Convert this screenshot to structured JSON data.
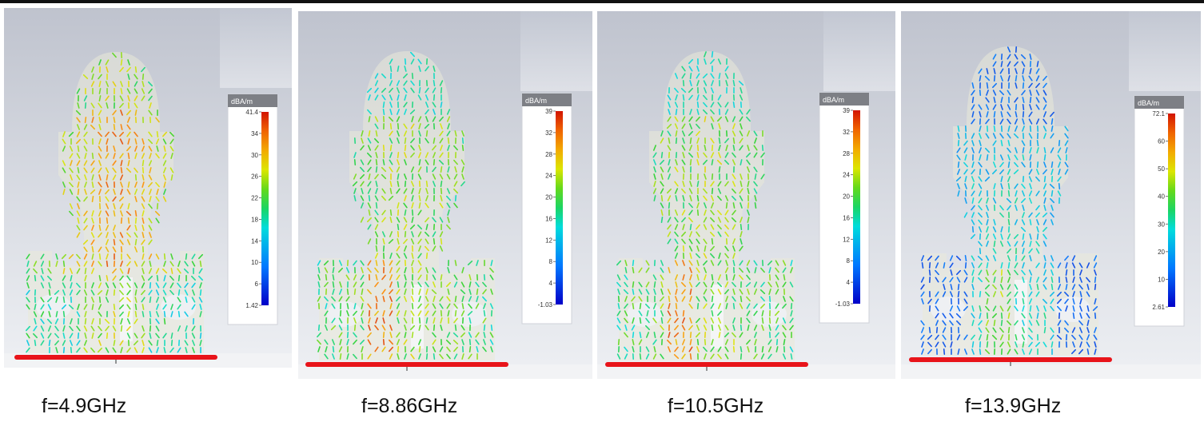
{
  "panels": [
    {
      "caption": "f=4.9GHz",
      "unit": "dBA/m",
      "ticks": [
        "41.4",
        "34",
        "30",
        "26",
        "22",
        "18",
        "14",
        "10",
        "6",
        "1.42"
      ],
      "colorbar_range": [
        1.42,
        41.4
      ]
    },
    {
      "caption": "f=8.86GHz",
      "unit": "dBA/m",
      "ticks": [
        "39",
        "32",
        "28",
        "24",
        "20",
        "16",
        "12",
        "8",
        "4",
        "-1.03"
      ],
      "colorbar_range": [
        -1.03,
        39
      ]
    },
    {
      "caption": "f=10.5GHz",
      "unit": "dBA/m",
      "ticks": [
        "39",
        "32",
        "28",
        "24",
        "20",
        "16",
        "12",
        "8",
        "4",
        "-1.03"
      ],
      "colorbar_range": [
        -1.03,
        39
      ]
    },
    {
      "caption": "f=13.9GHz",
      "unit": "dBA/m",
      "ticks": [
        "72.1",
        "60",
        "50",
        "40",
        "30",
        "20",
        "10",
        "2.61"
      ],
      "colorbar_range": [
        2.61,
        72.1
      ]
    }
  ]
}
